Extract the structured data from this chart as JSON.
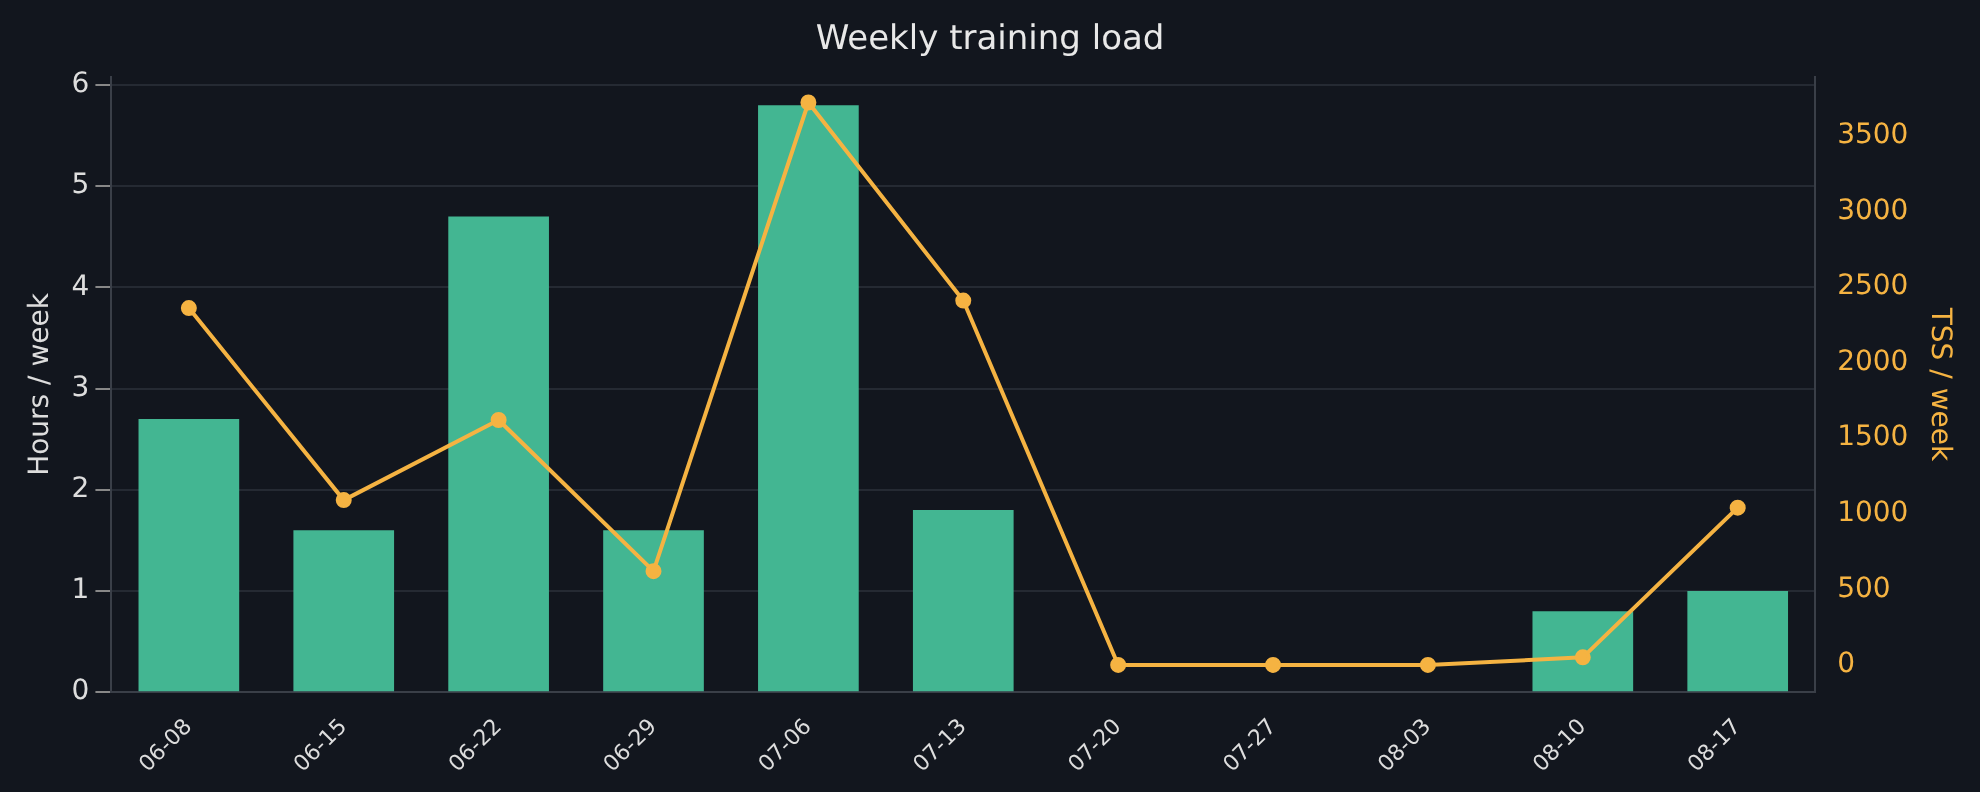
{
  "chart_data": {
    "type": "bar",
    "title": "Weekly training load",
    "ylabel": "Hours / week",
    "y2label": "TSS / week",
    "categories": [
      "06-08",
      "06-15",
      "06-22",
      "06-29",
      "07-06",
      "07-13",
      "07-20",
      "07-27",
      "08-03",
      "08-10",
      "08-17"
    ],
    "series": [
      {
        "color": "#43b692",
        "values": [
          2.7,
          1.6,
          4.7,
          1.6,
          5.8,
          1.8,
          0,
          0,
          0,
          0.8,
          1.0
        ]
      },
      {
        "type": "line",
        "axis": "y2",
        "color": "#f5b342",
        "values": [
          2360,
          1090,
          1620,
          620,
          3720,
          2410,
          0,
          0,
          0,
          50,
          1040
        ]
      }
    ],
    "ylim": [
      0,
      6.08
    ],
    "yticks": [
      0,
      1,
      2,
      3,
      4,
      5,
      6
    ],
    "y2lim": [
      -180,
      3890
    ],
    "y2ticks": [
      0,
      500,
      1000,
      1500,
      2000,
      2500,
      3000,
      3500
    ],
    "grid": "y",
    "legend": false,
    "marker": "circle",
    "line_style": "solid"
  }
}
